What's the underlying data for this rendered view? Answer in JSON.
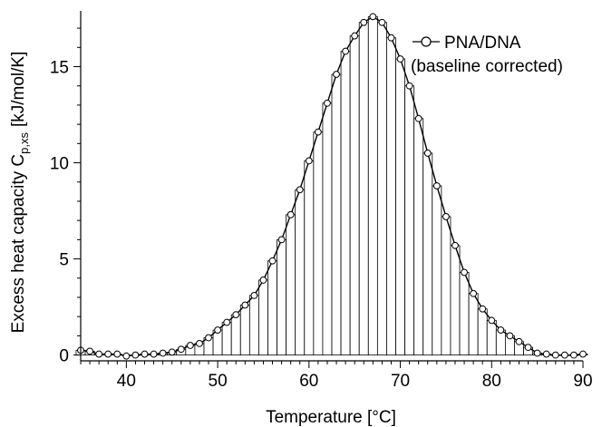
{
  "chart_data": {
    "type": "line",
    "title": "",
    "xlabel": "Temperature [°C]",
    "ylabel_main": "Excess heat capacity C",
    "ylabel_sub": "p,xs",
    "ylabel_units": "[kJ/mol/K]",
    "xlim": [
      35,
      90
    ],
    "ylim": [
      -0.3,
      17.9
    ],
    "xticks": [
      40,
      50,
      60,
      70,
      80,
      90
    ],
    "yticks": [
      0,
      5,
      10,
      15
    ],
    "legend": {
      "label": "PNA/DNA",
      "label2": "(baseline corrected)",
      "placement": "top-right"
    },
    "bar_width": 1,
    "series": [
      {
        "name": "PNA/DNA",
        "x": [
          35,
          36,
          37,
          38,
          39,
          40,
          41,
          42,
          43,
          44,
          45,
          46,
          47,
          48,
          49,
          50,
          51,
          52,
          53,
          54,
          55,
          56,
          57,
          58,
          59,
          60,
          61,
          62,
          63,
          64,
          65,
          66,
          67,
          68,
          69,
          70,
          71,
          72,
          73,
          74,
          75,
          76,
          77,
          78,
          79,
          80,
          81,
          82,
          83,
          84,
          85,
          86,
          87,
          88,
          89,
          90
        ],
        "values": [
          0.25,
          0.2,
          0.05,
          0.05,
          0.05,
          -0.05,
          0.0,
          0.05,
          0.05,
          0.1,
          0.15,
          0.3,
          0.5,
          0.6,
          0.9,
          1.3,
          1.7,
          2.1,
          2.6,
          3.1,
          3.9,
          4.9,
          6.0,
          7.3,
          8.6,
          10.1,
          11.6,
          13.1,
          14.6,
          15.8,
          16.6,
          17.3,
          17.6,
          17.3,
          16.5,
          15.4,
          14.0,
          12.3,
          10.5,
          8.8,
          7.2,
          5.7,
          4.3,
          3.2,
          2.4,
          1.8,
          1.3,
          1.0,
          0.7,
          0.4,
          0.1,
          0.05,
          0.0,
          0.0,
          0.0,
          0.05
        ]
      }
    ],
    "colors": {
      "line": "#000000",
      "bar_fill": "#ffffff",
      "bar_stroke": "#000000"
    }
  }
}
